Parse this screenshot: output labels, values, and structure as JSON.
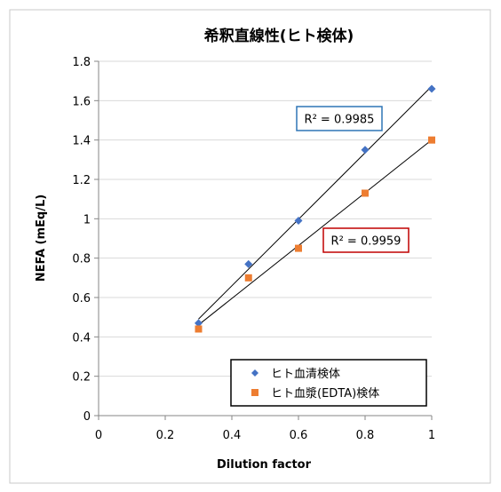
{
  "chart_data": {
    "type": "scatter",
    "title": "希釈直線性(ヒト検体)",
    "xlabel": "Dilution factor",
    "ylabel": "NEFA (mEq/L)",
    "xlim": [
      0,
      1
    ],
    "ylim": [
      0,
      1.8
    ],
    "x_ticks": [
      "0",
      "0.2",
      "0.4",
      "0.6",
      "0.8",
      "1"
    ],
    "y_ticks": [
      "0",
      "0.2",
      "0.4",
      "0.6",
      "0.8",
      "1",
      "1.2",
      "1.4",
      "1.6",
      "1.8"
    ],
    "grid": "horizontal",
    "legend_position": "bottom-right",
    "series": [
      {
        "name": "ヒト血清検体",
        "marker": "diamond",
        "color": "#4472C4",
        "x": [
          0.3,
          0.45,
          0.6,
          0.8,
          1.0
        ],
        "y": [
          0.47,
          0.77,
          0.99,
          1.35,
          1.66
        ],
        "r2_label": "R² = 0.9985",
        "r2_box_color": "#2E75B6"
      },
      {
        "name": "ヒト血漿(EDTA)検体",
        "marker": "square",
        "color": "#ED7D31",
        "x": [
          0.3,
          0.45,
          0.6,
          0.8,
          1.0
        ],
        "y": [
          0.44,
          0.7,
          0.85,
          1.13,
          1.4
        ],
        "r2_label": "R² = 0.9959",
        "r2_box_color": "#C00000"
      }
    ]
  }
}
